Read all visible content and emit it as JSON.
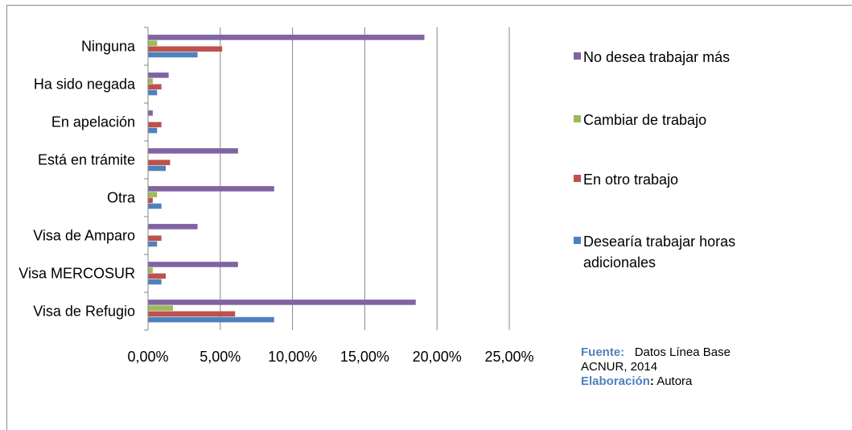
{
  "chart_data": {
    "type": "bar",
    "orientation": "horizontal",
    "categories": [
      "Ninguna",
      "Ha sido negada",
      "En apelación",
      "Está en trámite",
      "Otra",
      "Visa de Amparo",
      "Visa MERCOSUR",
      "Visa de Refugio"
    ],
    "series": [
      {
        "name": "Desearía trabajar horas adicionales",
        "color": "#4f81bd",
        "values": [
          3.4,
          0.6,
          0.6,
          1.2,
          0.9,
          0.6,
          0.9,
          8.7
        ]
      },
      {
        "name": "En otro trabajo",
        "color": "#c0504d",
        "values": [
          5.1,
          0.9,
          0.9,
          1.5,
          0.3,
          0.9,
          1.2,
          6.0
        ]
      },
      {
        "name": "Cambiar de trabajo",
        "color": "#9bbb59",
        "values": [
          0.6,
          0.3,
          0.0,
          0.0,
          0.6,
          0.0,
          0.3,
          1.7
        ]
      },
      {
        "name": "No desea trabajar más",
        "color": "#8064a2",
        "values": [
          19.1,
          1.4,
          0.3,
          6.2,
          8.7,
          3.4,
          6.2,
          18.5
        ]
      }
    ],
    "xlim": [
      0,
      25
    ],
    "xticks": [
      "0,00%",
      "5,00%",
      "10,00%",
      "15,00%",
      "20,00%",
      "25,00%"
    ],
    "grid": true,
    "legend_position": "right",
    "legend_order": [
      "No desea trabajar más",
      "Cambiar de trabajo",
      "En otro trabajo",
      "Desearía trabajar horas adicionales"
    ],
    "title": "",
    "xlabel": "",
    "ylabel": ""
  },
  "source_note": {
    "fuente_label": "Fuente:",
    "fuente_text": "Datos Línea Base",
    "fuente_text2": "ACNUR,  2014",
    "elaboracion_label": "Elaboración",
    "elaboracion_colon": ":",
    "elaboracion_text": " Autora"
  }
}
